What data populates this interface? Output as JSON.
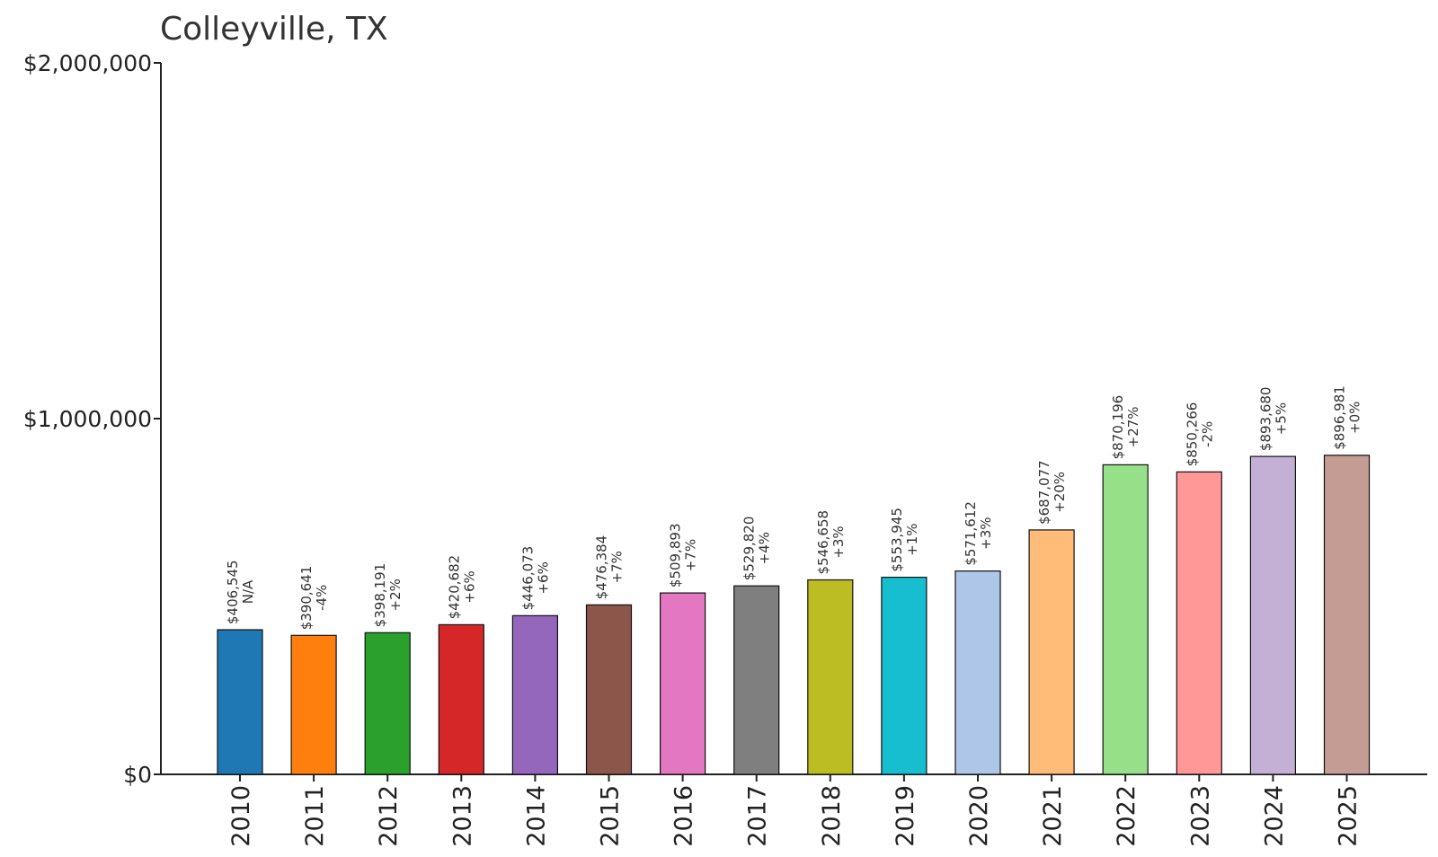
{
  "chart_data": {
    "type": "bar",
    "title": "Colleyville, TX",
    "xlabel": "",
    "ylabel": "",
    "ylim": [
      0,
      2000000
    ],
    "yticks": [
      {
        "value": 0,
        "label": "$0"
      },
      {
        "value": 1000000,
        "label": "$1,000,000"
      },
      {
        "value": 2000000,
        "label": "$2,000,000"
      }
    ],
    "grid": false,
    "categories": [
      "2010",
      "2011",
      "2012",
      "2013",
      "2014",
      "2015",
      "2016",
      "2017",
      "2018",
      "2019",
      "2020",
      "2021",
      "2022",
      "2023",
      "2024",
      "2025"
    ],
    "values": [
      406545,
      390641,
      398191,
      420682,
      446073,
      476384,
      509893,
      529820,
      546658,
      553945,
      571612,
      687077,
      870196,
      850266,
      893680,
      896981
    ],
    "value_labels": [
      "$406,545",
      "$390,641",
      "$398,191",
      "$420,682",
      "$446,073",
      "$476,384",
      "$509,893",
      "$529,820",
      "$546,658",
      "$553,945",
      "$571,612",
      "$687,077",
      "$870,196",
      "$850,266",
      "$893,680",
      "$896,981"
    ],
    "change_labels": [
      "N/A",
      "-4%",
      "+2%",
      "+6%",
      "+6%",
      "+7%",
      "+7%",
      "+4%",
      "+3%",
      "+1%",
      "+3%",
      "+20%",
      "+27%",
      "-2%",
      "+5%",
      "+0%"
    ],
    "colors": [
      "#1f77b4",
      "#ff7f0e",
      "#2ca02c",
      "#d62728",
      "#9467bd",
      "#8c564b",
      "#e377c2",
      "#7f7f7f",
      "#bcbd22",
      "#17becf",
      "#aec7e8",
      "#ffbb78",
      "#98df8a",
      "#ff9896",
      "#c5b0d5",
      "#c49c94"
    ]
  }
}
